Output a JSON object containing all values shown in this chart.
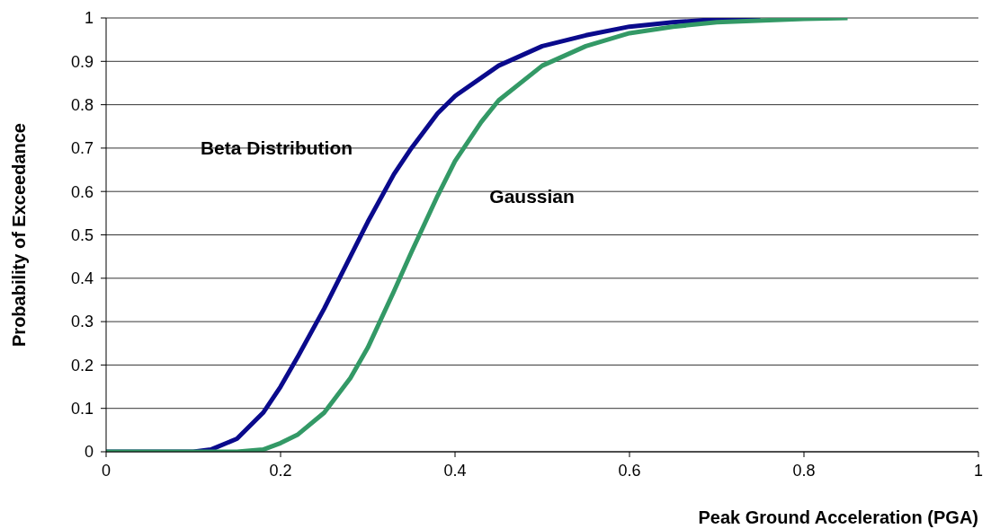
{
  "chart_data": {
    "type": "line",
    "xlabel": "Peak Ground Acceleration (PGA)",
    "ylabel": "Probability of Exceedance",
    "xlim": [
      0,
      1
    ],
    "xticks": [
      0,
      0.2,
      0.4,
      0.6,
      0.8,
      1
    ],
    "ylim": [
      0,
      1
    ],
    "yticks": [
      0,
      0.1,
      0.2,
      0.3,
      0.4,
      0.5,
      0.6,
      0.7,
      0.8,
      0.9,
      1
    ],
    "grid": "y",
    "marker": "none",
    "line_style": "solid",
    "legend": false,
    "series": [
      {
        "name": "Beta Distribution",
        "color": "#0a0a8c",
        "x": [
          0,
          0.1,
          0.12,
          0.15,
          0.18,
          0.2,
          0.22,
          0.25,
          0.28,
          0.3,
          0.33,
          0.35,
          0.38,
          0.4,
          0.45,
          0.5,
          0.55,
          0.6,
          0.65,
          0.7,
          0.75
        ],
        "values": [
          0,
          0,
          0.005,
          0.03,
          0.09,
          0.15,
          0.22,
          0.33,
          0.45,
          0.53,
          0.64,
          0.7,
          0.78,
          0.82,
          0.89,
          0.935,
          0.96,
          0.98,
          0.99,
          0.997,
          1
        ]
      },
      {
        "name": "Gaussian",
        "color": "#339966",
        "x": [
          0,
          0.15,
          0.18,
          0.2,
          0.22,
          0.25,
          0.28,
          0.3,
          0.33,
          0.35,
          0.38,
          0.4,
          0.43,
          0.45,
          0.5,
          0.55,
          0.6,
          0.65,
          0.7,
          0.8,
          0.85
        ],
        "values": [
          0,
          0,
          0.005,
          0.02,
          0.04,
          0.09,
          0.17,
          0.24,
          0.37,
          0.46,
          0.59,
          0.67,
          0.76,
          0.81,
          0.89,
          0.935,
          0.965,
          0.98,
          0.99,
          0.998,
          1
        ]
      }
    ]
  }
}
